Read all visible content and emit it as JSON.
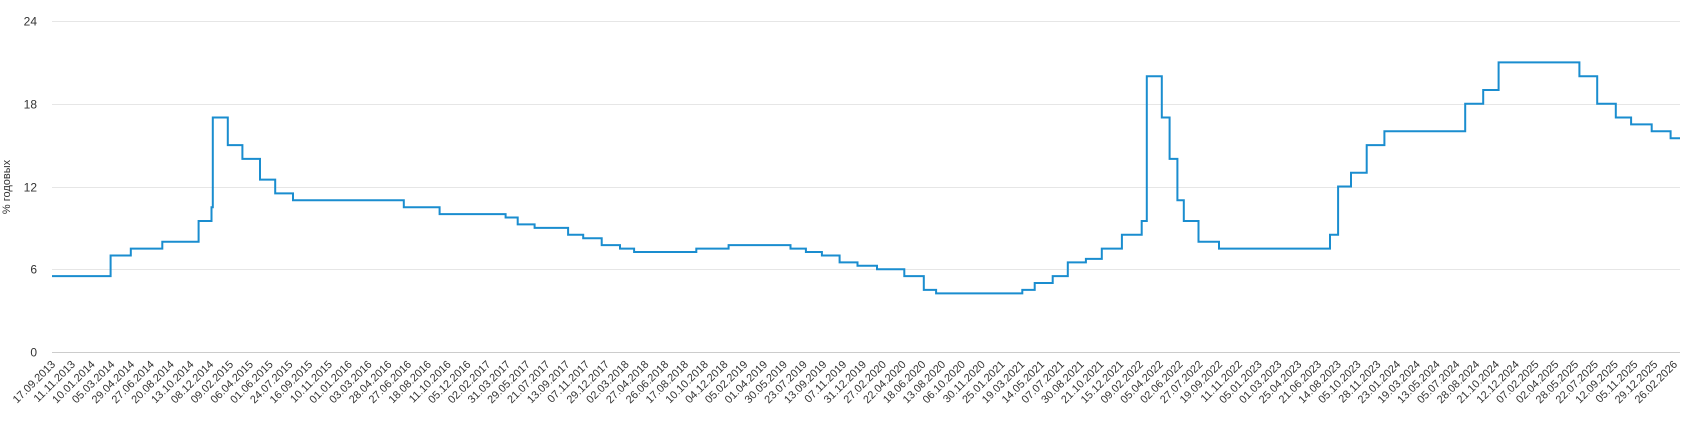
{
  "colors": {
    "line": "#1a8dcf",
    "grid": "#e6e6e6",
    "baseline": "#cccccc",
    "text": "#333333"
  },
  "chart_data": {
    "type": "line",
    "step": true,
    "title": "",
    "xlabel": "",
    "ylabel": "% годовых",
    "ylim": [
      0,
      24
    ],
    "yticks": [
      0,
      6,
      12,
      18,
      24
    ],
    "xlim": [
      "17.09.2013",
      "16.03.2026"
    ],
    "grid": true,
    "legend": "none",
    "x_tick_labels": [
      "17.09.2013",
      "11.11.2013",
      "10.01.2014",
      "05.03.2014",
      "29.04.2014",
      "27.06.2014",
      "20.08.2014",
      "13.10.2014",
      "08.12.2014",
      "09.02.2015",
      "06.04.2015",
      "01.06.2015",
      "24.07.2015",
      "16.09.2015",
      "10.11.2015",
      "01.01.2016",
      "03.03.2016",
      "28.04.2016",
      "27.06.2016",
      "18.08.2016",
      "11.10.2016",
      "05.12.2016",
      "02.02.2017",
      "31.03.2017",
      "29.05.2017",
      "21.07.2017",
      "13.09.2017",
      "07.11.2017",
      "29.12.2017",
      "02.03.2018",
      "27.04.2018",
      "26.06.2018",
      "17.08.2018",
      "10.10.2018",
      "04.12.2018",
      "05.02.2019",
      "01.04.2019",
      "30.05.2019",
      "23.07.2019",
      "13.09.2019",
      "07.11.2019",
      "31.12.2019",
      "27.02.2020",
      "22.04.2020",
      "18.06.2020",
      "13.08.2020",
      "06.10.2020",
      "30.11.2020",
      "25.01.2021",
      "19.03.2021",
      "14.05.2021",
      "07.07.2021",
      "30.08.2021",
      "21.10.2021",
      "15.12.2021",
      "09.02.2022",
      "05.04.2022",
      "02.06.2022",
      "27.07.2022",
      "19.09.2022",
      "11.11.2022",
      "05.01.2023",
      "01.03.2023",
      "25.04.2023",
      "21.06.2023",
      "14.08.2023",
      "05.10.2023",
      "28.11.2023",
      "23.01.2024",
      "19.03.2024",
      "13.05.2024",
      "05.07.2024",
      "28.08.2024",
      "21.10.2024",
      "12.12.2024",
      "07.02.2025",
      "02.04.2025",
      "28.05.2025",
      "22.07.2025",
      "12.09.2025",
      "05.11.2025",
      "29.12.2025",
      "26.02.2026"
    ],
    "series": [
      {
        "x": [
          "17.09.2013",
          "03.03.2014",
          "28.04.2014",
          "28.07.2014",
          "05.11.2014",
          "12.12.2014",
          "16.12.2014",
          "02.02.2015",
          "16.03.2015",
          "05.05.2015",
          "16.06.2015",
          "03.08.2015",
          "14.06.2016",
          "19.09.2016",
          "27.03.2017",
          "02.05.2017",
          "19.06.2017",
          "18.09.2017",
          "30.10.2017",
          "18.12.2017",
          "12.02.2018",
          "26.03.2018",
          "17.09.2018",
          "17.12.2018",
          "17.06.2019",
          "29.07.2019",
          "09.09.2019",
          "28.10.2019",
          "16.12.2019",
          "10.02.2020",
          "27.04.2020",
          "22.06.2020",
          "27.07.2020",
          "22.03.2021",
          "26.04.2021",
          "15.06.2021",
          "26.07.2021",
          "13.09.2021",
          "25.10.2021",
          "20.12.2021",
          "14.02.2022",
          "28.02.2022",
          "11.04.2022",
          "04.05.2022",
          "27.05.2022",
          "14.06.2022",
          "25.07.2022",
          "19.09.2022",
          "24.07.2023",
          "15.08.2023",
          "18.09.2023",
          "30.10.2023",
          "18.12.2023",
          "29.07.2024",
          "16.09.2024",
          "28.10.2024",
          "09.06.2025",
          "28.07.2025",
          "15.09.2025",
          "27.10.2025",
          "22.12.2025",
          "16.02.2026"
        ],
        "y": [
          5.5,
          7,
          7.5,
          8,
          9.5,
          10.5,
          17,
          15,
          14,
          12.5,
          11.5,
          11,
          10.5,
          10,
          9.75,
          9.25,
          9,
          8.5,
          8.25,
          7.75,
          7.5,
          7.25,
          7.5,
          7.75,
          7.5,
          7.25,
          7,
          6.5,
          6.25,
          6,
          5.5,
          4.5,
          4.25,
          4.5,
          5,
          5.5,
          6.5,
          6.75,
          7.5,
          8.5,
          9.5,
          20,
          17,
          14,
          11,
          9.5,
          8,
          7.5,
          8.5,
          12,
          13,
          15,
          16,
          18,
          19,
          21,
          20,
          18,
          17,
          16.5,
          16,
          15.5
        ]
      }
    ]
  }
}
